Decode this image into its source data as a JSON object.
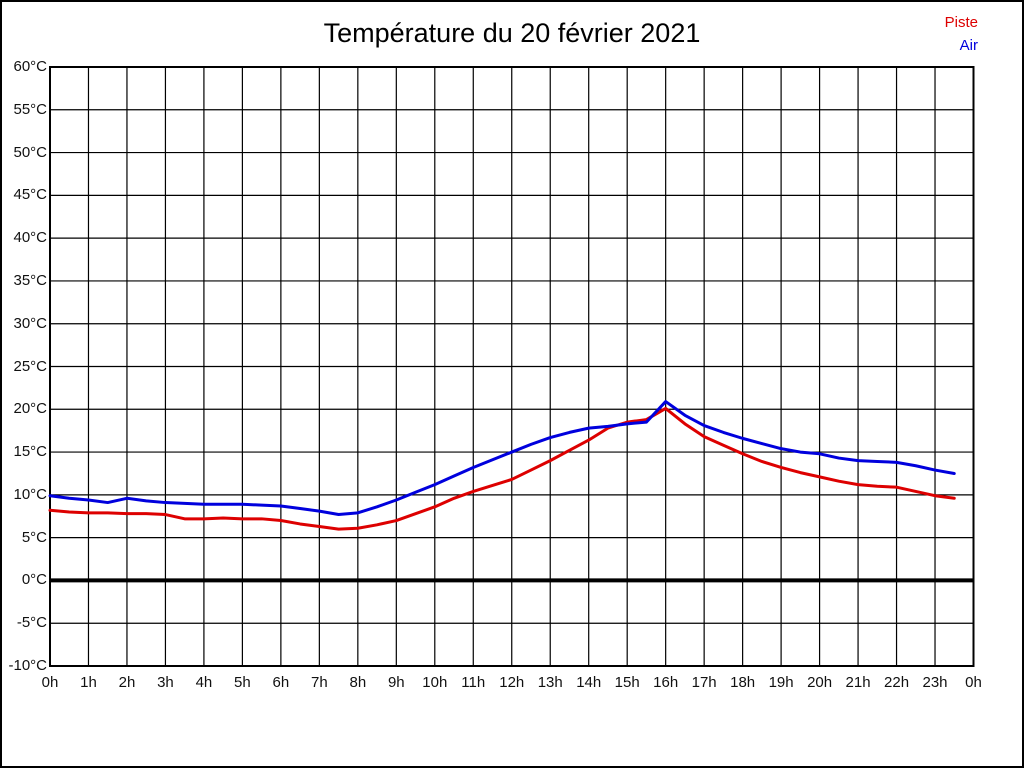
{
  "page": {
    "background": "#ffffff",
    "border_color": "#000000"
  },
  "title": "Température du 20 février 2021",
  "legend": {
    "items": [
      {
        "label": "Piste",
        "color": "#dd0000"
      },
      {
        "label": "Air",
        "color": "#0000dd"
      }
    ]
  },
  "chart_data": {
    "type": "line",
    "title": "Température du 20 février 2021",
    "xlabel": "",
    "ylabel": "",
    "xlim": [
      0,
      24
    ],
    "ylim": [
      -10,
      60
    ],
    "grid": true,
    "grid_color": "#000000",
    "legend_position": "top-right",
    "x_tick_values": [
      0,
      1,
      2,
      3,
      4,
      5,
      6,
      7,
      8,
      9,
      10,
      11,
      12,
      13,
      14,
      15,
      16,
      17,
      18,
      19,
      20,
      21,
      22,
      23,
      24
    ],
    "x_tick_labels": [
      "0h",
      "1h",
      "2h",
      "3h",
      "4h",
      "5h",
      "6h",
      "7h",
      "8h",
      "9h",
      "10h",
      "11h",
      "12h",
      "13h",
      "14h",
      "15h",
      "16h",
      "17h",
      "18h",
      "19h",
      "20h",
      "21h",
      "22h",
      "23h",
      "0h"
    ],
    "y_tick_values": [
      60,
      55,
      50,
      45,
      40,
      35,
      30,
      25,
      20,
      15,
      10,
      5,
      0,
      -5,
      -10
    ],
    "y_tick_labels": [
      "60°C",
      "55°C",
      "50°C",
      "45°C",
      "40°C",
      "35°C",
      "30°C",
      "25°C",
      "20°C",
      "15°C",
      "10°C",
      "5°C",
      "0°C",
      "-5°C",
      "-10°C"
    ],
    "zero_line": {
      "value": 0,
      "color": "#000000",
      "width": 4
    },
    "x": [
      0,
      0.5,
      1,
      1.5,
      2,
      2.5,
      3,
      3.5,
      4,
      4.5,
      5,
      5.5,
      6,
      6.5,
      7,
      7.5,
      8,
      8.5,
      9,
      9.5,
      10,
      10.5,
      11,
      11.5,
      12,
      12.5,
      13,
      13.5,
      14,
      14.5,
      15,
      15.5,
      16,
      16.5,
      17,
      17.5,
      18,
      18.5,
      19,
      19.5,
      20,
      20.5,
      21,
      21.5,
      22,
      22.5,
      23,
      23.5
    ],
    "series": [
      {
        "name": "Piste",
        "color": "#dd0000",
        "values": [
          8.2,
          8.0,
          7.9,
          7.9,
          7.8,
          7.8,
          7.7,
          7.2,
          7.2,
          7.3,
          7.2,
          7.2,
          7.0,
          6.6,
          6.3,
          6.0,
          6.1,
          6.5,
          7.0,
          7.8,
          8.6,
          9.6,
          10.4,
          11.1,
          11.8,
          12.9,
          14.0,
          15.2,
          16.4,
          17.8,
          18.5,
          18.8,
          20.1,
          18.3,
          16.8,
          15.8,
          14.8,
          13.9,
          13.2,
          12.6,
          12.1,
          11.6,
          11.2,
          11.0,
          10.9,
          10.4,
          9.9,
          9.6
        ]
      },
      {
        "name": "Air",
        "color": "#0000dd",
        "values": [
          9.9,
          9.6,
          9.4,
          9.1,
          9.6,
          9.3,
          9.1,
          9.0,
          8.9,
          8.9,
          8.9,
          8.8,
          8.7,
          8.4,
          8.1,
          7.7,
          7.9,
          8.6,
          9.4,
          10.3,
          11.2,
          12.2,
          13.2,
          14.1,
          15.0,
          15.9,
          16.7,
          17.3,
          17.8,
          18.0,
          18.3,
          18.5,
          20.9,
          19.3,
          18.1,
          17.3,
          16.6,
          16.0,
          15.4,
          15.0,
          14.8,
          14.3,
          14.0,
          13.9,
          13.8,
          13.4,
          12.9,
          12.5
        ]
      }
    ]
  }
}
